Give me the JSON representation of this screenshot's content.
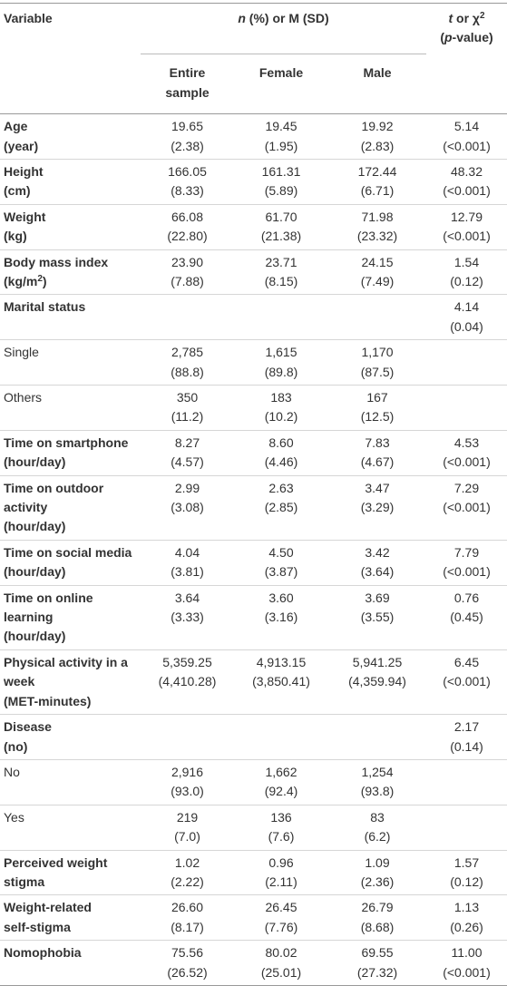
{
  "table": {
    "header": {
      "variable": [
        "Variable"
      ],
      "group": [
        [
          {
            "text": "n",
            "style": "italic"
          },
          " (%) or M (SD)"
        ]
      ],
      "test": [
        [
          {
            "text": "t",
            "style": "italic"
          },
          " or χ",
          {
            "text": "2",
            "style": "sup"
          }
        ],
        [
          "(",
          {
            "text": "p",
            "style": "italic"
          },
          "-value)"
        ]
      ],
      "columns": [
        [
          "Entire",
          "sample"
        ],
        [
          "Female"
        ],
        [
          "Male"
        ]
      ]
    },
    "rows": [
      {
        "label": [
          "Age",
          "(year)"
        ],
        "bold": true,
        "values": [
          [
            "19.65",
            "(2.38)"
          ],
          [
            "19.45",
            "(1.95)"
          ],
          [
            "19.92",
            "(2.83)"
          ],
          [
            "5.14",
            "(<0.001)"
          ]
        ]
      },
      {
        "label": [
          "Height",
          "(cm)"
        ],
        "bold": true,
        "values": [
          [
            "166.05",
            "(8.33)"
          ],
          [
            "161.31",
            "(5.89)"
          ],
          [
            "172.44",
            "(6.71)"
          ],
          [
            "48.32",
            "(<0.001)"
          ]
        ]
      },
      {
        "label": [
          "Weight",
          "(kg)"
        ],
        "bold": true,
        "values": [
          [
            "66.08",
            "(22.80)"
          ],
          [
            "61.70",
            "(21.38)"
          ],
          [
            "71.98",
            "(23.32)"
          ],
          [
            "12.79",
            "(<0.001)"
          ]
        ]
      },
      {
        "label": [
          "Body mass index",
          [
            "(kg/m",
            {
              "text": "2",
              "style": "sup"
            },
            ")"
          ]
        ],
        "bold": true,
        "values": [
          [
            "23.90",
            "(7.88)"
          ],
          [
            "23.71",
            "(8.15)"
          ],
          [
            "24.15",
            "(7.49)"
          ],
          [
            "1.54",
            "(0.12)"
          ]
        ]
      },
      {
        "label": [
          "Marital status"
        ],
        "bold": true,
        "values": [
          [],
          [],
          [],
          [
            "4.14",
            "(0.04)"
          ]
        ]
      },
      {
        "label": [
          "Single"
        ],
        "bold": false,
        "values": [
          [
            "2,785",
            "(88.8)"
          ],
          [
            "1,615",
            "(89.8)"
          ],
          [
            "1,170",
            "(87.5)"
          ],
          []
        ]
      },
      {
        "label": [
          "Others"
        ],
        "bold": false,
        "values": [
          [
            "350",
            "(11.2)"
          ],
          [
            "183",
            "(10.2)"
          ],
          [
            "167",
            "(12.5)"
          ],
          []
        ]
      },
      {
        "label": [
          "Time on smartphone",
          "(hour/day)"
        ],
        "bold": true,
        "values": [
          [
            "8.27",
            "(4.57)"
          ],
          [
            "8.60",
            "(4.46)"
          ],
          [
            "7.83",
            "(4.67)"
          ],
          [
            "4.53",
            "(<0.001)"
          ]
        ]
      },
      {
        "label": [
          "Time on outdoor",
          "activity",
          "(hour/day)"
        ],
        "bold": true,
        "values": [
          [
            "2.99",
            "(3.08)"
          ],
          [
            "2.63",
            "(2.85)"
          ],
          [
            "3.47",
            "(3.29)"
          ],
          [
            "7.29",
            "(<0.001)"
          ]
        ]
      },
      {
        "label": [
          "Time on social media",
          "(hour/day)"
        ],
        "bold": true,
        "values": [
          [
            "4.04",
            "(3.81)"
          ],
          [
            "4.50",
            "(3.87)"
          ],
          [
            "3.42",
            "(3.64)"
          ],
          [
            "7.79",
            "(<0.001)"
          ]
        ]
      },
      {
        "label": [
          "Time on online learning",
          "(hour/day)"
        ],
        "bold": true,
        "values": [
          [
            "3.64",
            "(3.33)"
          ],
          [
            "3.60",
            "(3.16)"
          ],
          [
            "3.69",
            "(3.55)"
          ],
          [
            "0.76",
            "(0.45)"
          ]
        ]
      },
      {
        "label": [
          "Physical activity in a",
          "week",
          "(MET-minutes)"
        ],
        "bold": true,
        "values": [
          [
            "5,359.25",
            "(4,410.28)"
          ],
          [
            "4,913.15",
            "(3,850.41)"
          ],
          [
            "5,941.25",
            "(4,359.94)"
          ],
          [
            "6.45",
            "(<0.001)"
          ]
        ]
      },
      {
        "label": [
          "Disease",
          "(no)"
        ],
        "bold": true,
        "values": [
          [],
          [],
          [],
          [
            "2.17",
            "(0.14)"
          ]
        ]
      },
      {
        "label": [
          "No"
        ],
        "bold": false,
        "values": [
          [
            "2,916",
            "(93.0)"
          ],
          [
            "1,662",
            "(92.4)"
          ],
          [
            "1,254",
            "(93.8)"
          ],
          []
        ]
      },
      {
        "label": [
          "Yes"
        ],
        "bold": false,
        "values": [
          [
            "219",
            "(7.0)"
          ],
          [
            "136",
            "(7.6)"
          ],
          [
            "83",
            "(6.2)"
          ],
          []
        ]
      },
      {
        "label": [
          "Perceived weight",
          "stigma"
        ],
        "bold": true,
        "values": [
          [
            "1.02",
            "(2.22)"
          ],
          [
            "0.96",
            "(2.11)"
          ],
          [
            "1.09",
            "(2.36)"
          ],
          [
            "1.57",
            "(0.12)"
          ]
        ]
      },
      {
        "label": [
          "Weight-related",
          "self-stigma"
        ],
        "bold": true,
        "values": [
          [
            "26.60",
            "(8.17)"
          ],
          [
            "26.45",
            "(7.76)"
          ],
          [
            "26.79",
            "(8.68)"
          ],
          [
            "1.13",
            "(0.26)"
          ]
        ]
      },
      {
        "label": [
          "Nomophobia"
        ],
        "bold": true,
        "values": [
          [
            "75.56",
            "(26.52)"
          ],
          [
            "80.02",
            "(25.01)"
          ],
          [
            "69.55",
            "(27.32)"
          ],
          [
            "11.00",
            "(<0.001)"
          ]
        ]
      }
    ]
  }
}
